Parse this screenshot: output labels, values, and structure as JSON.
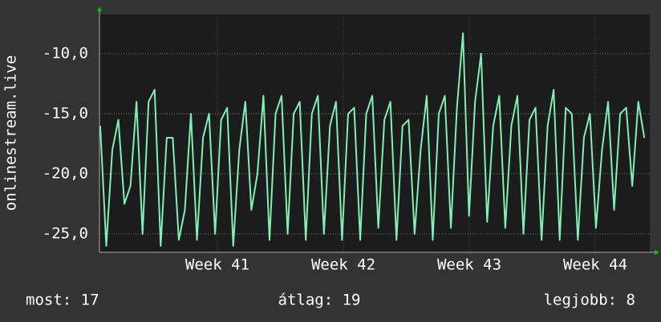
{
  "chart_data": {
    "type": "line",
    "y_label": "onlinestream.live",
    "x": [
      40.57,
      40.618,
      40.666,
      40.714,
      40.762,
      40.81,
      40.858,
      40.906,
      40.954,
      41.002,
      41.05,
      41.098,
      41.146,
      41.194,
      41.242,
      41.29,
      41.338,
      41.386,
      41.434,
      41.482,
      41.53,
      41.578,
      41.626,
      41.674,
      41.722,
      41.77,
      41.818,
      41.866,
      41.914,
      41.962,
      42.01,
      42.058,
      42.106,
      42.154,
      42.202,
      42.25,
      42.298,
      42.346,
      42.394,
      42.442,
      42.49,
      42.538,
      42.586,
      42.634,
      42.682,
      42.73,
      42.778,
      42.826,
      42.874,
      42.922,
      42.97,
      43.018,
      43.066,
      43.114,
      43.162,
      43.21,
      43.258,
      43.306,
      43.354,
      43.402,
      43.45,
      43.498,
      43.546,
      43.594,
      43.642,
      43.69,
      43.738,
      43.786,
      43.834,
      43.882,
      43.93,
      43.978,
      44.026,
      44.074,
      44.122,
      44.17,
      44.218,
      44.266,
      44.314,
      44.362,
      44.41,
      44.458,
      44.506,
      44.554,
      44.602,
      44.65,
      44.698,
      44.746,
      44.794,
      44.842,
      44.89
    ],
    "series": [
      {
        "color": "#80f0b8",
        "values": [
          -16,
          -26,
          -18,
          -15.5,
          -22.5,
          -21,
          -14,
          -25,
          -14,
          -13,
          -26,
          -17,
          -17,
          -25.5,
          -23,
          -15,
          -25.5,
          -17,
          -15,
          -25,
          -15.5,
          -14.5,
          -26,
          -18,
          -14,
          -23,
          -20,
          -13.5,
          -25.5,
          -15,
          -13.5,
          -25,
          -15,
          -14,
          -25.5,
          -15,
          -13.5,
          -25,
          -16,
          -14,
          -25.5,
          -15,
          -14.5,
          -25.5,
          -15,
          -13.5,
          -24.5,
          -15.5,
          -14,
          -25.5,
          -16,
          -15.5,
          -25,
          -18,
          -13.5,
          -25.5,
          -15,
          -13.5,
          -24.5,
          -14.5,
          -8.3,
          -23.5,
          -14,
          -10,
          -24,
          -16,
          -13.5,
          -24.5,
          -16,
          -13.5,
          -25,
          -15.5,
          -14.5,
          -25.5,
          -16,
          -13,
          -25.5,
          -14.5,
          -15,
          -25.5,
          -17,
          -15,
          -24.5,
          -18,
          -14,
          -23,
          -15,
          -14.5,
          -21,
          -14,
          -17
        ]
      }
    ],
    "xlim": [
      40.564,
      44.933
    ],
    "xticks": [
      {
        "value": 41.5,
        "label": "Week 41"
      },
      {
        "value": 42.5,
        "label": "Week 42"
      },
      {
        "value": 43.5,
        "label": "Week 43"
      },
      {
        "value": 44.5,
        "label": "Week 44"
      }
    ],
    "ylim": [
      -26.53,
      -6.73
    ],
    "yticks": [
      {
        "value": -25,
        "label": "-25,0"
      },
      {
        "value": -20,
        "label": "-20,0"
      },
      {
        "value": -15,
        "label": "-15,0"
      },
      {
        "value": -10,
        "label": "-10,0"
      }
    ],
    "grid": true,
    "stats": [
      "most: 17",
      "átlag: 19",
      "legjobb: 8"
    ]
  }
}
